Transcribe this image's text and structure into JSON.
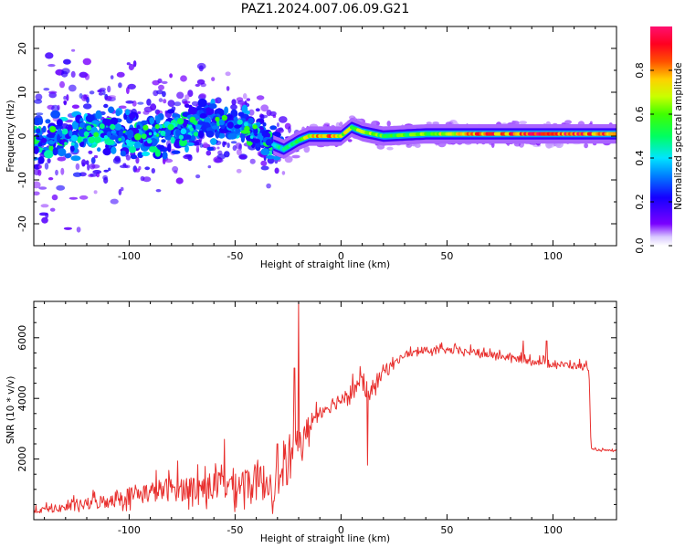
{
  "title": "PAZ1.2024.007.06.09.G21",
  "colors": {
    "snr_line": "#e8302e",
    "axes": "#000000",
    "spectro_scatter": "#6a00e8",
    "spectro_ridge": "#ff2020"
  },
  "chart_data": [
    {
      "type": "heatmap",
      "name": "spectrogram",
      "xlabel": "Height of straight line (km)",
      "ylabel": "Frequency (Hz)",
      "xlim": [
        -145,
        130
      ],
      "ylim": [
        -25,
        25
      ],
      "xticks": [
        -100,
        -50,
        0,
        50,
        100
      ],
      "yticks": [
        -20,
        -10,
        0,
        10,
        20
      ],
      "colorbar": {
        "label": "Normalized spectral amplitude",
        "range": [
          0.0,
          1.0
        ],
        "ticks": [
          0.0,
          0.2,
          0.4,
          0.6,
          0.8
        ],
        "colormap": "hsv-like (purple-blue-cyan-green-yellow-red)"
      },
      "ridge": {
        "x": [
          -145,
          -130,
          -110,
          -90,
          -70,
          -55,
          -40,
          -32,
          -27,
          -20,
          -15,
          -5,
          0,
          5,
          10,
          20,
          40,
          60,
          80,
          100,
          115,
          130
        ],
        "frequency": [
          -1,
          0,
          1,
          0,
          2,
          3,
          1,
          -2,
          -3,
          -1,
          0,
          0,
          0,
          2,
          1,
          0,
          0.5,
          0.5,
          0.5,
          0.5,
          0.5,
          0.5
        ],
        "amplitude": [
          0.25,
          0.3,
          0.3,
          0.3,
          0.4,
          0.45,
          0.35,
          0.4,
          0.45,
          0.55,
          0.7,
          0.85,
          0.7,
          0.6,
          0.75,
          0.55,
          0.6,
          0.8,
          0.85,
          0.9,
          0.85,
          0.8
        ]
      },
      "scatter_extent_hz": {
        "x": [
          -145,
          -100,
          -50,
          -30,
          -20,
          0,
          50,
          130
        ],
        "spread": [
          25,
          20,
          12,
          10,
          4,
          3,
          3,
          3
        ]
      }
    },
    {
      "type": "line",
      "name": "snr",
      "xlabel": "Height of straight line (km)",
      "ylabel": "SNR (10 * v/v)",
      "xlim": [
        -145,
        130
      ],
      "ylim": [
        0,
        7200
      ],
      "xticks": [
        -100,
        -50,
        0,
        50,
        100
      ],
      "yticks": [
        2000,
        4000,
        6000
      ],
      "x": [
        -145,
        -140,
        -130,
        -120,
        -110,
        -100,
        -90,
        -80,
        -70,
        -60,
        -50,
        -45,
        -40,
        -35,
        -30,
        -25,
        -22,
        -20,
        -18,
        -15,
        -10,
        -5,
        0,
        5,
        10,
        12,
        15,
        20,
        25,
        30,
        40,
        50,
        60,
        70,
        80,
        90,
        100,
        110,
        117,
        118,
        120,
        125,
        130
      ],
      "y": [
        250,
        300,
        350,
        450,
        550,
        700,
        800,
        900,
        900,
        950,
        1000,
        1050,
        1050,
        1050,
        1000,
        1500,
        2200,
        2600,
        2300,
        3000,
        3500,
        3700,
        3900,
        4200,
        4500,
        3900,
        4300,
        4800,
        5100,
        5400,
        5550,
        5550,
        5500,
        5400,
        5300,
        5200,
        5100,
        5050,
        5000,
        2300,
        2300,
        2280,
        2250
      ],
      "spikes": [
        {
          "x": -20,
          "y": 7200
        },
        {
          "x": -22,
          "y": 5000
        },
        {
          "x": 12.5,
          "y": 1800
        },
        {
          "x": 86,
          "y": 5900
        },
        {
          "x": 97,
          "y": 5900
        },
        {
          "x": -55,
          "y": 2650
        },
        {
          "x": -30,
          "y": 2500
        }
      ]
    }
  ]
}
